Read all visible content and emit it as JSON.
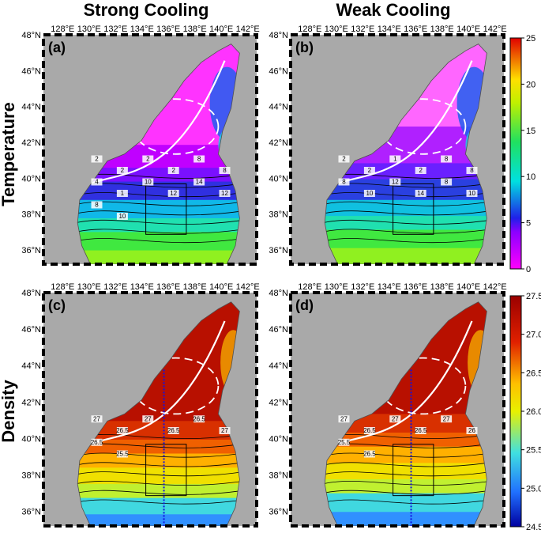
{
  "column_titles": [
    "Strong Cooling",
    "Weak Cooling"
  ],
  "row_titles": [
    "Temperature",
    "Density"
  ],
  "panel_labels": [
    "(a)",
    "(b)",
    "(c)",
    "(d)"
  ],
  "lon_ticks": [
    "128°E",
    "130°E",
    "132°E",
    "134°E",
    "136°E",
    "138°E",
    "140°E",
    "142°E"
  ],
  "lat_ticks": [
    "48°N",
    "46°N",
    "44°N",
    "42°N",
    "40°N",
    "38°N",
    "36°N"
  ],
  "chart_data": [
    {
      "type": "heatmap",
      "panel": "(a)",
      "variable": "Temperature",
      "case": "Strong Cooling",
      "lon_range": [
        127,
        143
      ],
      "lat_range": [
        35,
        48
      ],
      "colorbar": {
        "min": 0,
        "max": 25,
        "ticks": [
          0,
          5,
          10,
          15,
          20,
          25
        ]
      },
      "contour_labels": [
        "2",
        "2",
        "2",
        "2",
        "8",
        "8",
        "4",
        "1",
        "10",
        "12",
        "14",
        "12",
        "8",
        "10"
      ]
    },
    {
      "type": "heatmap",
      "panel": "(b)",
      "variable": "Temperature",
      "case": "Weak Cooling",
      "lon_range": [
        127,
        143
      ],
      "lat_range": [
        35,
        48
      ],
      "colorbar": {
        "min": 0,
        "max": 25,
        "ticks": [
          0,
          5,
          10,
          15,
          20,
          25
        ]
      },
      "contour_labels": [
        "2",
        "2",
        "1",
        "2",
        "8",
        "8",
        "8",
        "10",
        "12",
        "14",
        "8",
        "10"
      ]
    },
    {
      "type": "heatmap",
      "panel": "(c)",
      "variable": "Density",
      "case": "Strong Cooling",
      "lon_range": [
        127,
        143
      ],
      "lat_range": [
        35,
        48
      ],
      "colorbar": {
        "min": 24.5,
        "max": 27.5,
        "ticks": [
          24.5,
          25.0,
          25.5,
          26.0,
          26.5,
          27.0,
          27.5
        ]
      },
      "contour_labels": [
        "27",
        "26.5",
        "27",
        "26.5",
        "26.5",
        "27",
        "26.5",
        "25.5"
      ]
    },
    {
      "type": "heatmap",
      "panel": "(d)",
      "variable": "Density",
      "case": "Weak Cooling",
      "lon_range": [
        127,
        143
      ],
      "lat_range": [
        35,
        48
      ],
      "colorbar": {
        "min": 24.5,
        "max": 27.5,
        "ticks": [
          24.5,
          25.0,
          25.5,
          26.0,
          26.5,
          27.0,
          27.5
        ]
      },
      "contour_labels": [
        "27",
        "26.5",
        "27",
        "26.5",
        "27",
        "26",
        "25.5",
        "26.5"
      ]
    }
  ],
  "colorbar_temperature_ticks": [
    "0",
    "5",
    "10",
    "15",
    "20",
    "25"
  ],
  "colorbar_density_ticks": [
    "24.5",
    "25.0",
    "25.5",
    "26.0",
    "26.5",
    "27.0",
    "27.5"
  ]
}
